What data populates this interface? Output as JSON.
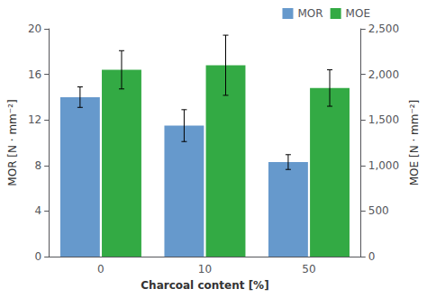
{
  "chart_data": {
    "type": "bar",
    "xlabel": "Charcoal content [%]",
    "ylabel": "MOR [N · mm⁻²]",
    "y2label": "MOE [N · mm⁻²]",
    "categories": [
      "0",
      "10",
      "50"
    ],
    "series": [
      {
        "name": "MOR",
        "color": "#6699CC",
        "values": [
          14.0,
          11.5,
          8.3
        ],
        "errors": [
          0.9,
          1.4,
          0.65
        ]
      },
      {
        "name": "MOE",
        "color": "#33AA44",
        "values": [
          2050,
          2100,
          1850
        ],
        "errors": [
          210,
          330,
          200
        ],
        "axis": "y2"
      }
    ],
    "ylim": [
      0,
      20
    ],
    "yticks": [
      0,
      4,
      8,
      12,
      16,
      20
    ],
    "y2lim": [
      0,
      2500
    ],
    "y2ticks": [
      0,
      500,
      1000,
      1500,
      2000,
      2500
    ],
    "legend": "upper right",
    "grid": false
  }
}
